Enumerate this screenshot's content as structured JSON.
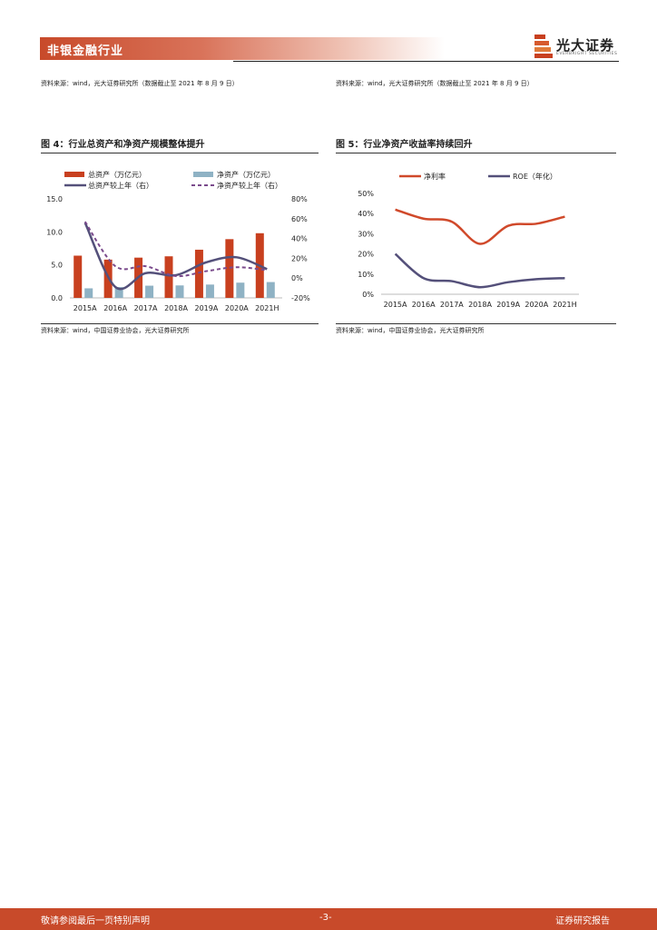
{
  "header": {
    "section": "非银金融行业",
    "logo_text": "光大证券",
    "logo_sub": "EVERBRIGHT SECURITIES"
  },
  "top_sources": {
    "left": "资料来源：wind，光大证券研究所（数据截止至 2021 年 8 月 9 日）",
    "right": "资料来源：wind，光大证券研究所（数据截止至 2021 年 8 月 9 日）"
  },
  "figure4": {
    "title": "图 4：行业总资产和净资产规模整体提升",
    "source": "资料来源：wind，中国证券业协会，光大证券研究所"
  },
  "figure5": {
    "title": "图 5：行业净资产收益率持续回升",
    "source": "资料来源：wind，中国证券业协会，光大证券研究所"
  },
  "chart_data": [
    {
      "type": "bar",
      "categories": [
        "2015A",
        "2016A",
        "2017A",
        "2018A",
        "2019A",
        "2020A",
        "2021H"
      ],
      "series": [
        {
          "name": "总资产（万亿元）",
          "kind": "bar",
          "axis": "left",
          "color": "#c8401f",
          "values": [
            6.4,
            5.8,
            6.1,
            6.3,
            7.3,
            8.9,
            9.8
          ]
        },
        {
          "name": "净资产（万亿元）",
          "kind": "bar",
          "axis": "left",
          "color": "#8fb2c4",
          "values": [
            1.45,
            1.64,
            1.85,
            1.89,
            2.02,
            2.31,
            2.4
          ]
        },
        {
          "name": "总资产较上年（右）",
          "kind": "line",
          "style": "solid",
          "axis": "right",
          "color": "#54507a",
          "values": [
            56,
            -9,
            5,
            3,
            16,
            21,
            9
          ]
        },
        {
          "name": "净资产较上年（右）",
          "kind": "line",
          "style": "dashed",
          "axis": "right",
          "color": "#7a4a8c",
          "values": [
            57,
            12,
            12,
            2,
            7,
            11,
            8
          ]
        }
      ],
      "ylim_left": [
        0,
        15
      ],
      "yticks_left": [
        "0.0",
        "5.0",
        "10.0",
        "15.0"
      ],
      "ylim_right": [
        -20,
        80
      ],
      "yticks_right": [
        "-20%",
        "0%",
        "20%",
        "40%",
        "60%",
        "80%"
      ],
      "legend_position": "top"
    },
    {
      "type": "line",
      "categories": [
        "2015A",
        "2016A",
        "2017A",
        "2018A",
        "2019A",
        "2020A",
        "2021H"
      ],
      "series": [
        {
          "name": "净利率",
          "color": "#d0492a",
          "values": [
            42,
            37.5,
            36,
            25,
            34,
            35,
            38.5
          ]
        },
        {
          "name": "ROE（年化）",
          "color": "#54507a",
          "values": [
            20,
            8,
            6.5,
            3.5,
            6,
            7.5,
            8
          ]
        }
      ],
      "ylim": [
        0,
        50
      ],
      "yticks": [
        "0%",
        "10%",
        "20%",
        "30%",
        "40%",
        "50%"
      ],
      "legend_position": "top"
    }
  ],
  "footer": {
    "left": "敬请参阅最后一页特别声明",
    "center": "-3-",
    "right": "证券研究报告"
  }
}
